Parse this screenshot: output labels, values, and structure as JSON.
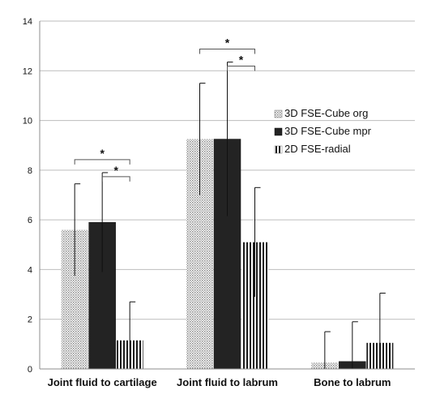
{
  "chart_data": {
    "type": "bar",
    "title": "",
    "xlabel": "",
    "ylabel": "",
    "ylim": [
      0,
      14
    ],
    "yticks": [
      0,
      2,
      4,
      6,
      8,
      10,
      12,
      14
    ],
    "grid": true,
    "legend_position": "right",
    "categories": [
      "Joint fluid to cartilage",
      "Joint fluid to labrum",
      "Bone to labrum"
    ],
    "series": [
      {
        "name": "3D FSE-Cube org",
        "values": [
          5.6,
          9.25,
          0.25
        ],
        "errors": [
          1.85,
          2.25,
          1.25
        ],
        "pattern": "dotted",
        "color": "#d4d4d4"
      },
      {
        "name": "3D FSE-Cube mpr",
        "values": [
          5.9,
          9.25,
          0.3
        ],
        "errors": [
          2.0,
          3.1,
          1.6
        ],
        "pattern": "solid",
        "color": "#232323"
      },
      {
        "name": "2D FSE-radial",
        "values": [
          1.15,
          5.1,
          1.05
        ],
        "errors": [
          1.55,
          2.2,
          2.0
        ],
        "pattern": "vertical-stripes",
        "color": "#1a1a1a"
      }
    ],
    "significance": [
      {
        "category": 0,
        "from_series": 0,
        "to_series": 2,
        "level": "outer",
        "label": "*"
      },
      {
        "category": 0,
        "from_series": 1,
        "to_series": 2,
        "level": "inner",
        "label": "*"
      },
      {
        "category": 1,
        "from_series": 0,
        "to_series": 2,
        "level": "outer",
        "label": "*"
      },
      {
        "category": 1,
        "from_series": 1,
        "to_series": 2,
        "level": "inner",
        "label": "*"
      }
    ]
  }
}
